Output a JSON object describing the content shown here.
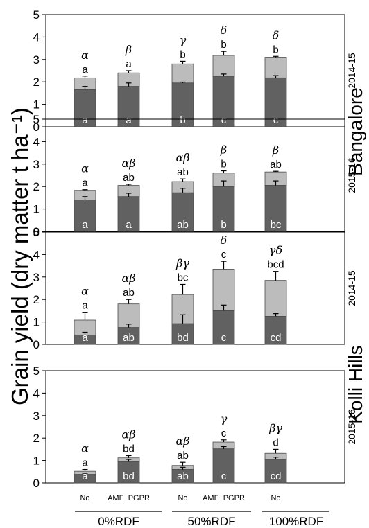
{
  "ylabel": "Grain yield (dry matter t ha⁻¹)",
  "site_labels": [
    "Bangalore",
    "Kolli Hills"
  ],
  "treatment_labels": [
    "No",
    "AMF+PGPR",
    "No",
    "AMF+PGPR",
    "No"
  ],
  "rdf_groups": [
    "0%RDF",
    "50%RDF",
    "100%RDF"
  ],
  "yticks": [
    "0",
    "1",
    "2",
    "3",
    "4",
    "5"
  ],
  "colors": {
    "dark": "#616161",
    "light": "#bcbcbc",
    "axis": "#000000"
  },
  "chart_data": [
    {
      "type": "bar",
      "site": "Bangalore",
      "year": "2014-15",
      "ylim": [
        0,
        5
      ],
      "dark": [
        1.65,
        1.8,
        1.95,
        2.25,
        2.18
      ],
      "dark_err": [
        0.15,
        0.15,
        0.04,
        0.1,
        0.1
      ],
      "dark_letters": [
        "a",
        "a",
        "b",
        "c",
        "c"
      ],
      "total": [
        2.18,
        2.4,
        2.8,
        3.18,
        3.1
      ],
      "total_err": [
        0.08,
        0.1,
        0.12,
        0.18,
        0.04
      ],
      "total_letters": [
        "a",
        "a",
        "b",
        "b",
        "b"
      ],
      "greek": [
        "α",
        "β",
        "γ",
        "δ",
        "δ"
      ]
    },
    {
      "type": "bar",
      "site": "Bangalore",
      "year": "2015-16",
      "ylim": [
        0,
        5
      ],
      "dark": [
        1.4,
        1.55,
        1.72,
        2.0,
        2.05
      ],
      "dark_err": [
        0.15,
        0.15,
        0.2,
        0.25,
        0.2
      ],
      "dark_letters": [
        "a",
        "a",
        "ab",
        "b",
        "bc"
      ],
      "total": [
        1.83,
        2.05,
        2.22,
        2.6,
        2.65
      ],
      "total_err": [
        0.03,
        0.05,
        0.12,
        0.1,
        0.03
      ],
      "total_letters": [
        "a",
        "ab",
        "ab",
        "b",
        "ab"
      ],
      "greek": [
        "α",
        "αβ",
        "αβ",
        "β",
        "β"
      ]
    },
    {
      "type": "bar",
      "site": "Kolli Hills",
      "year": "2014-15",
      "ylim": [
        0,
        5
      ],
      "dark": [
        0.42,
        0.75,
        0.92,
        1.5,
        1.25
      ],
      "dark_err": [
        0.12,
        0.15,
        0.4,
        0.25,
        0.12
      ],
      "dark_letters": [
        "a",
        "ab",
        "bd",
        "c",
        "cd"
      ],
      "total": [
        1.08,
        1.8,
        2.22,
        3.35,
        2.85
      ],
      "total_err": [
        0.35,
        0.2,
        0.45,
        0.35,
        0.4
      ],
      "total_letters": [
        "a",
        "ab",
        "bc",
        "c",
        "bcd"
      ],
      "greek": [
        "α",
        "αβ",
        "βγ",
        "δ",
        "γδ"
      ]
    },
    {
      "type": "bar",
      "site": "Kolli Hills",
      "year": "2015-16",
      "ylim": [
        0,
        5
      ],
      "dark": [
        0.38,
        0.95,
        0.6,
        1.52,
        1.05
      ],
      "dark_err": [
        0.05,
        0.1,
        0.1,
        0.1,
        0.1
      ],
      "dark_letters": [
        "a",
        "bd",
        "ab",
        "c",
        "cd"
      ],
      "total": [
        0.52,
        1.12,
        0.78,
        1.82,
        1.32
      ],
      "total_err": [
        0.08,
        0.1,
        0.14,
        0.1,
        0.18
      ],
      "total_letters": [
        "a",
        "bd",
        "ab",
        "c",
        "d"
      ],
      "greek": [
        "α",
        "αβ",
        "αβ",
        "γ",
        "βγ"
      ]
    }
  ]
}
